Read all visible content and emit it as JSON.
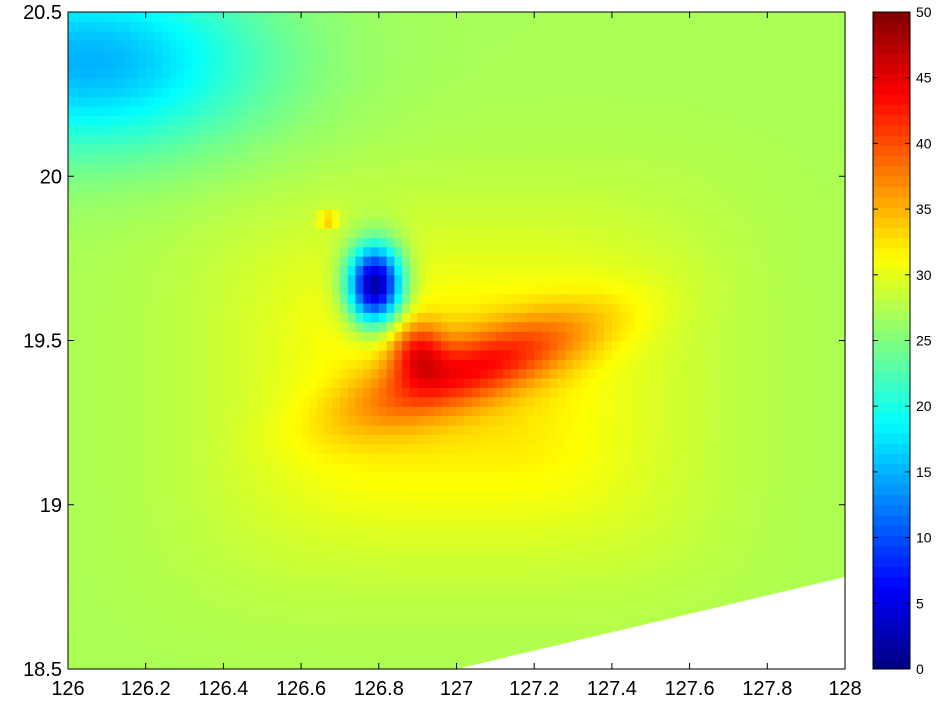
{
  "chart_data": {
    "type": "heatmap",
    "title": "",
    "xlabel": "",
    "ylabel": "",
    "xlim": [
      126,
      128
    ],
    "ylim": [
      18.5,
      20.5
    ],
    "xticks": [
      "126",
      "126.2",
      "126.4",
      "126.6",
      "126.8",
      "127",
      "127.2",
      "127.4",
      "127.6",
      "127.8",
      "128"
    ],
    "yticks": [
      "18.5",
      "19",
      "19.5",
      "20",
      "20.5"
    ],
    "colormap": "jet",
    "clim": [
      0,
      50
    ],
    "colorbar_ticks": [
      "0",
      "5",
      "10",
      "15",
      "20",
      "25",
      "30",
      "35",
      "40",
      "45",
      "50"
    ],
    "colorbar_location": "right",
    "grid": false,
    "background_value": 27,
    "features": [
      {
        "kind": "maximum",
        "x": 126.9,
        "y": 19.47,
        "value": 50
      },
      {
        "kind": "minimum",
        "x": 126.79,
        "y": 19.67,
        "value": 3
      },
      {
        "kind": "high-plateau",
        "x_range": [
          126.45,
          127.55
        ],
        "y_range": [
          18.75,
          19.95
        ],
        "value": 33
      },
      {
        "kind": "low-region",
        "x": 126.05,
        "y": 20.35,
        "value": 15
      },
      {
        "kind": "minor-maximum",
        "x": 126.67,
        "y": 19.87,
        "value": 33
      }
    ],
    "no_data_region": {
      "x": [
        127.0,
        128.0,
        128.0
      ],
      "y": [
        18.5,
        18.78,
        18.5
      ]
    }
  }
}
